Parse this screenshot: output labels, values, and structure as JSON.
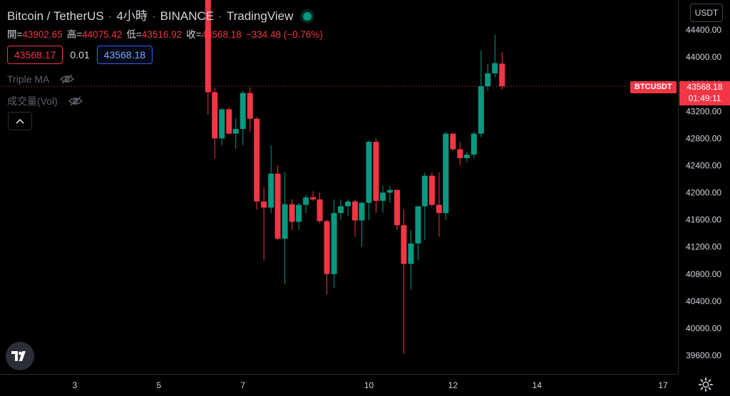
{
  "header": {
    "symbol": "Bitcoin / TetherUS",
    "interval": "4小時",
    "exchange": "BINANCE",
    "source": "TradingView"
  },
  "ohlc": {
    "open_label": "開=",
    "open": "43902.65",
    "high_label": "高=",
    "high": "44075.42",
    "low_label": "低=",
    "low": "43516.92",
    "close_label": "收=",
    "close": "43568.18",
    "change": "−334.48 (−0.76%)"
  },
  "trade": {
    "sell": "43568.17",
    "spread": "0.01",
    "buy": "43568.18"
  },
  "indicators": {
    "triple_ma": "Triple MA",
    "volume": "成交量(Vol)"
  },
  "price_axis": {
    "currency": "USDT",
    "symbol_tag": "BTCUSDT",
    "last_price": "43568.18",
    "countdown": "01:49:11"
  },
  "colors": {
    "up": "#089981",
    "down": "#f23645",
    "background": "#000000"
  },
  "chart_data": {
    "type": "candlestick",
    "y_ticks": [
      "44400.00",
      "44000.00",
      "43600.00",
      "43200.00",
      "42800.00",
      "42400.00",
      "42000.00",
      "41600.00",
      "41200.00",
      "40800.00",
      "40400.00",
      "40000.00",
      "39600.00"
    ],
    "y_tick_values": [
      44400,
      44000,
      43600,
      43200,
      42800,
      42400,
      42000,
      41600,
      41200,
      40800,
      40400,
      40000,
      39600
    ],
    "x_ticks": [
      "3",
      "5",
      "7",
      "10",
      "12",
      "14",
      "17"
    ],
    "x_tick_days": [
      3,
      5,
      7,
      10,
      12,
      14,
      17
    ],
    "ylim": [
      39260,
      44800
    ],
    "last_price": 43568.18,
    "candles": [
      {
        "day": 6.17,
        "o": 45000,
        "h": 45300,
        "l": 43150,
        "c": 43480
      },
      {
        "day": 6.33,
        "o": 43480,
        "h": 43550,
        "l": 42500,
        "c": 42800
      },
      {
        "day": 6.5,
        "o": 42800,
        "h": 43250,
        "l": 42700,
        "c": 43230
      },
      {
        "day": 6.67,
        "o": 43230,
        "h": 43260,
        "l": 42860,
        "c": 42870
      },
      {
        "day": 6.83,
        "o": 42870,
        "h": 43100,
        "l": 42650,
        "c": 42940
      },
      {
        "day": 7.0,
        "o": 42940,
        "h": 43500,
        "l": 42700,
        "c": 43470
      },
      {
        "day": 7.17,
        "o": 43470,
        "h": 43550,
        "l": 42900,
        "c": 43090
      },
      {
        "day": 7.33,
        "o": 43090,
        "h": 43120,
        "l": 41750,
        "c": 41870
      },
      {
        "day": 7.5,
        "o": 41870,
        "h": 42080,
        "l": 41000,
        "c": 41780
      },
      {
        "day": 7.67,
        "o": 41780,
        "h": 42700,
        "l": 41700,
        "c": 42280
      },
      {
        "day": 7.83,
        "o": 42280,
        "h": 42400,
        "l": 41300,
        "c": 41320
      },
      {
        "day": 8.0,
        "o": 41320,
        "h": 42300,
        "l": 40650,
        "c": 41830
      },
      {
        "day": 8.17,
        "o": 41830,
        "h": 41900,
        "l": 41450,
        "c": 41570
      },
      {
        "day": 8.33,
        "o": 41570,
        "h": 41850,
        "l": 41450,
        "c": 41820
      },
      {
        "day": 8.5,
        "o": 41820,
        "h": 41970,
        "l": 41700,
        "c": 41930
      },
      {
        "day": 8.67,
        "o": 41930,
        "h": 42020,
        "l": 41880,
        "c": 41900
      },
      {
        "day": 8.83,
        "o": 41900,
        "h": 42000,
        "l": 41550,
        "c": 41580
      },
      {
        "day": 9.0,
        "o": 41580,
        "h": 41600,
        "l": 40500,
        "c": 40800
      },
      {
        "day": 9.17,
        "o": 40800,
        "h": 41900,
        "l": 40600,
        "c": 41700
      },
      {
        "day": 9.33,
        "o": 41700,
        "h": 41900,
        "l": 41600,
        "c": 41800
      },
      {
        "day": 9.5,
        "o": 41800,
        "h": 41900,
        "l": 41650,
        "c": 41870
      },
      {
        "day": 9.67,
        "o": 41870,
        "h": 41900,
        "l": 41350,
        "c": 41590
      },
      {
        "day": 9.83,
        "o": 41590,
        "h": 41870,
        "l": 41200,
        "c": 41850
      },
      {
        "day": 10.0,
        "o": 41850,
        "h": 42770,
        "l": 41600,
        "c": 42750
      },
      {
        "day": 10.17,
        "o": 42750,
        "h": 42800,
        "l": 41700,
        "c": 41880
      },
      {
        "day": 10.33,
        "o": 41880,
        "h": 42100,
        "l": 41700,
        "c": 42000
      },
      {
        "day": 10.5,
        "o": 42000,
        "h": 42100,
        "l": 41850,
        "c": 42040
      },
      {
        "day": 10.67,
        "o": 42040,
        "h": 42050,
        "l": 41450,
        "c": 41520
      },
      {
        "day": 10.83,
        "o": 41520,
        "h": 41750,
        "l": 39620,
        "c": 40950
      },
      {
        "day": 11.0,
        "o": 40950,
        "h": 41450,
        "l": 40570,
        "c": 41250
      },
      {
        "day": 11.17,
        "o": 41250,
        "h": 41800,
        "l": 41000,
        "c": 41800
      },
      {
        "day": 11.33,
        "o": 41800,
        "h": 42300,
        "l": 41300,
        "c": 42250
      },
      {
        "day": 11.5,
        "o": 42250,
        "h": 42300,
        "l": 41800,
        "c": 41820
      },
      {
        "day": 11.67,
        "o": 41820,
        "h": 42300,
        "l": 41350,
        "c": 41700
      },
      {
        "day": 11.83,
        "o": 41700,
        "h": 42900,
        "l": 41600,
        "c": 42870
      },
      {
        "day": 12.0,
        "o": 42870,
        "h": 42880,
        "l": 42620,
        "c": 42640
      },
      {
        "day": 12.17,
        "o": 42640,
        "h": 42750,
        "l": 42400,
        "c": 42510
      },
      {
        "day": 12.33,
        "o": 42510,
        "h": 42600,
        "l": 42450,
        "c": 42560
      },
      {
        "day": 12.5,
        "o": 42560,
        "h": 42900,
        "l": 42500,
        "c": 42870
      },
      {
        "day": 12.67,
        "o": 42870,
        "h": 44100,
        "l": 42820,
        "c": 43570
      },
      {
        "day": 12.83,
        "o": 43570,
        "h": 43900,
        "l": 43500,
        "c": 43760
      },
      {
        "day": 13.0,
        "o": 43760,
        "h": 44330,
        "l": 43700,
        "c": 43910
      },
      {
        "day": 13.17,
        "o": 43902.65,
        "h": 44075.42,
        "l": 43516.92,
        "c": 43568.18
      }
    ]
  }
}
